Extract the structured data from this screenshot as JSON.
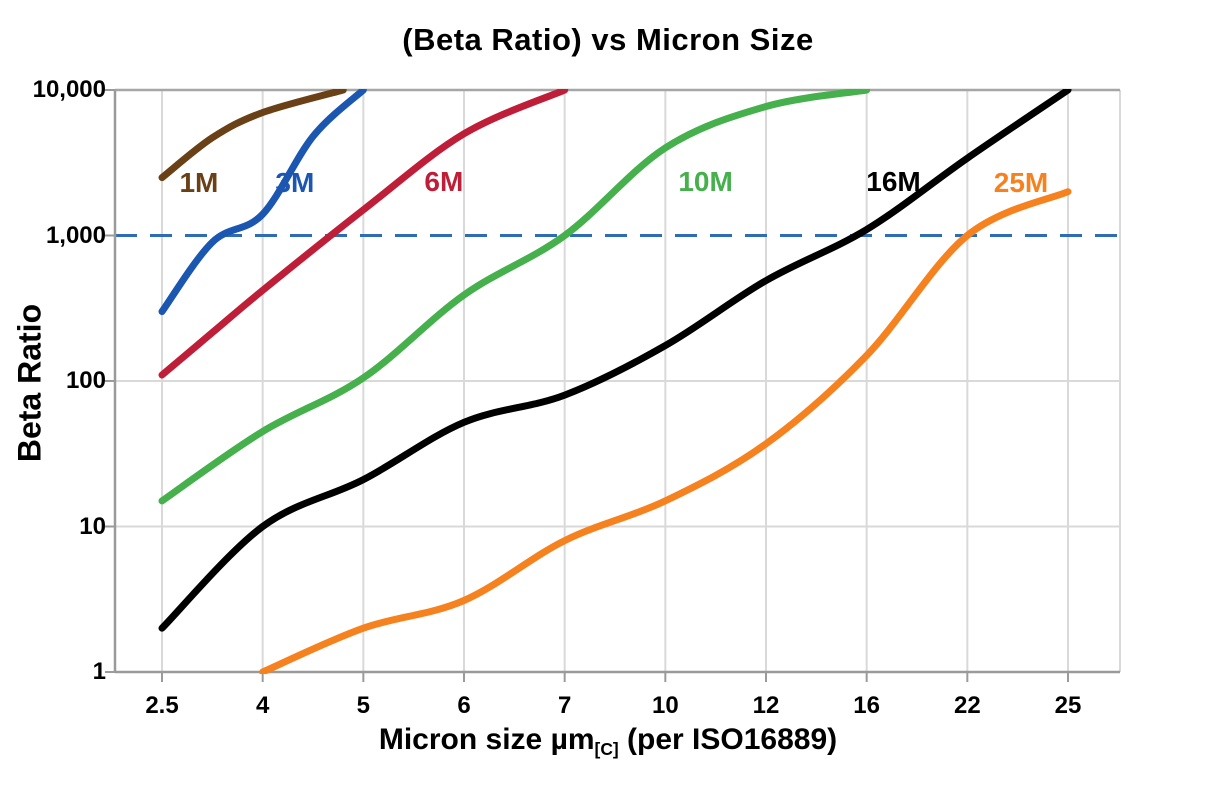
{
  "chart_data": {
    "type": "line",
    "title": "(Beta Ratio) vs Micron Size",
    "ylabel": "Beta Ratio",
    "xlabel": "Micron size µm[C] (per ISO16889)",
    "xlabel_parts": {
      "main": "Micron size µm",
      "sub": "[C]",
      "rest": " (per ISO16889)"
    },
    "x_ticks": [
      2.5,
      4,
      5,
      6,
      7,
      10,
      12,
      16,
      22,
      25
    ],
    "x_tick_labels": [
      "2.5",
      "4",
      "5",
      "6",
      "7",
      "10",
      "12",
      "16",
      "22",
      "25"
    ],
    "y_scale": "log",
    "ylim": [
      1,
      10000
    ],
    "y_ticks": [
      1,
      10,
      100,
      1000,
      10000
    ],
    "y_tick_labels": [
      "1",
      "10",
      "100",
      "1,000",
      "10,000"
    ],
    "grid": true,
    "reference_line": {
      "y": 1000,
      "style": "dashed",
      "color": "#2e6db4"
    },
    "colors": {
      "grid": "#d9d9d9",
      "axis": "#9a9a9a",
      "frame": "#a6a6a6",
      "text": "#000000"
    },
    "series": [
      {
        "name": "1M",
        "color": "#6a4016",
        "label_at": [
          3.05,
          2300
        ],
        "points": [
          [
            2.5,
            2500
          ],
          [
            3.25,
            4700
          ],
          [
            4,
            7000
          ],
          [
            4.8,
            10000
          ]
        ]
      },
      {
        "name": "3M",
        "color": "#1b56b0",
        "label_at": [
          4.32,
          2300
        ],
        "points": [
          [
            2.5,
            300
          ],
          [
            3.25,
            900
          ],
          [
            4,
            1400
          ],
          [
            4.5,
            4800
          ],
          [
            5,
            10000
          ]
        ]
      },
      {
        "name": "6M",
        "color": "#bf1e38",
        "label_at": [
          5.8,
          2330
        ],
        "points": [
          [
            2.5,
            110
          ],
          [
            3.25,
            215
          ],
          [
            4,
            420
          ],
          [
            5,
            1500
          ],
          [
            6,
            5000
          ],
          [
            7,
            10000
          ]
        ]
      },
      {
        "name": "10M",
        "color": "#45b04c",
        "label_at": [
          10.8,
          2320
        ],
        "points": [
          [
            2.5,
            15
          ],
          [
            4,
            45
          ],
          [
            5,
            105
          ],
          [
            6,
            390
          ],
          [
            7,
            1000
          ],
          [
            10,
            4000
          ],
          [
            12,
            7700
          ],
          [
            16,
            10000
          ]
        ]
      },
      {
        "name": "16M",
        "color": "#000000",
        "label_at": [
          17.6,
          2350
        ],
        "points": [
          [
            2.5,
            2
          ],
          [
            4,
            10
          ],
          [
            5,
            21
          ],
          [
            6,
            52
          ],
          [
            7,
            80
          ],
          [
            10,
            175
          ],
          [
            12,
            490
          ],
          [
            16,
            1100
          ],
          [
            22,
            3400
          ],
          [
            25,
            10000
          ]
        ]
      },
      {
        "name": "25M",
        "color": "#f5821f",
        "label_at": [
          23.6,
          2300
        ],
        "points": [
          [
            4,
            1
          ],
          [
            5,
            2
          ],
          [
            6,
            3.1
          ],
          [
            7,
            8
          ],
          [
            10,
            15
          ],
          [
            12,
            37
          ],
          [
            16,
            150
          ],
          [
            22,
            1000
          ],
          [
            25,
            2000
          ]
        ]
      }
    ]
  }
}
